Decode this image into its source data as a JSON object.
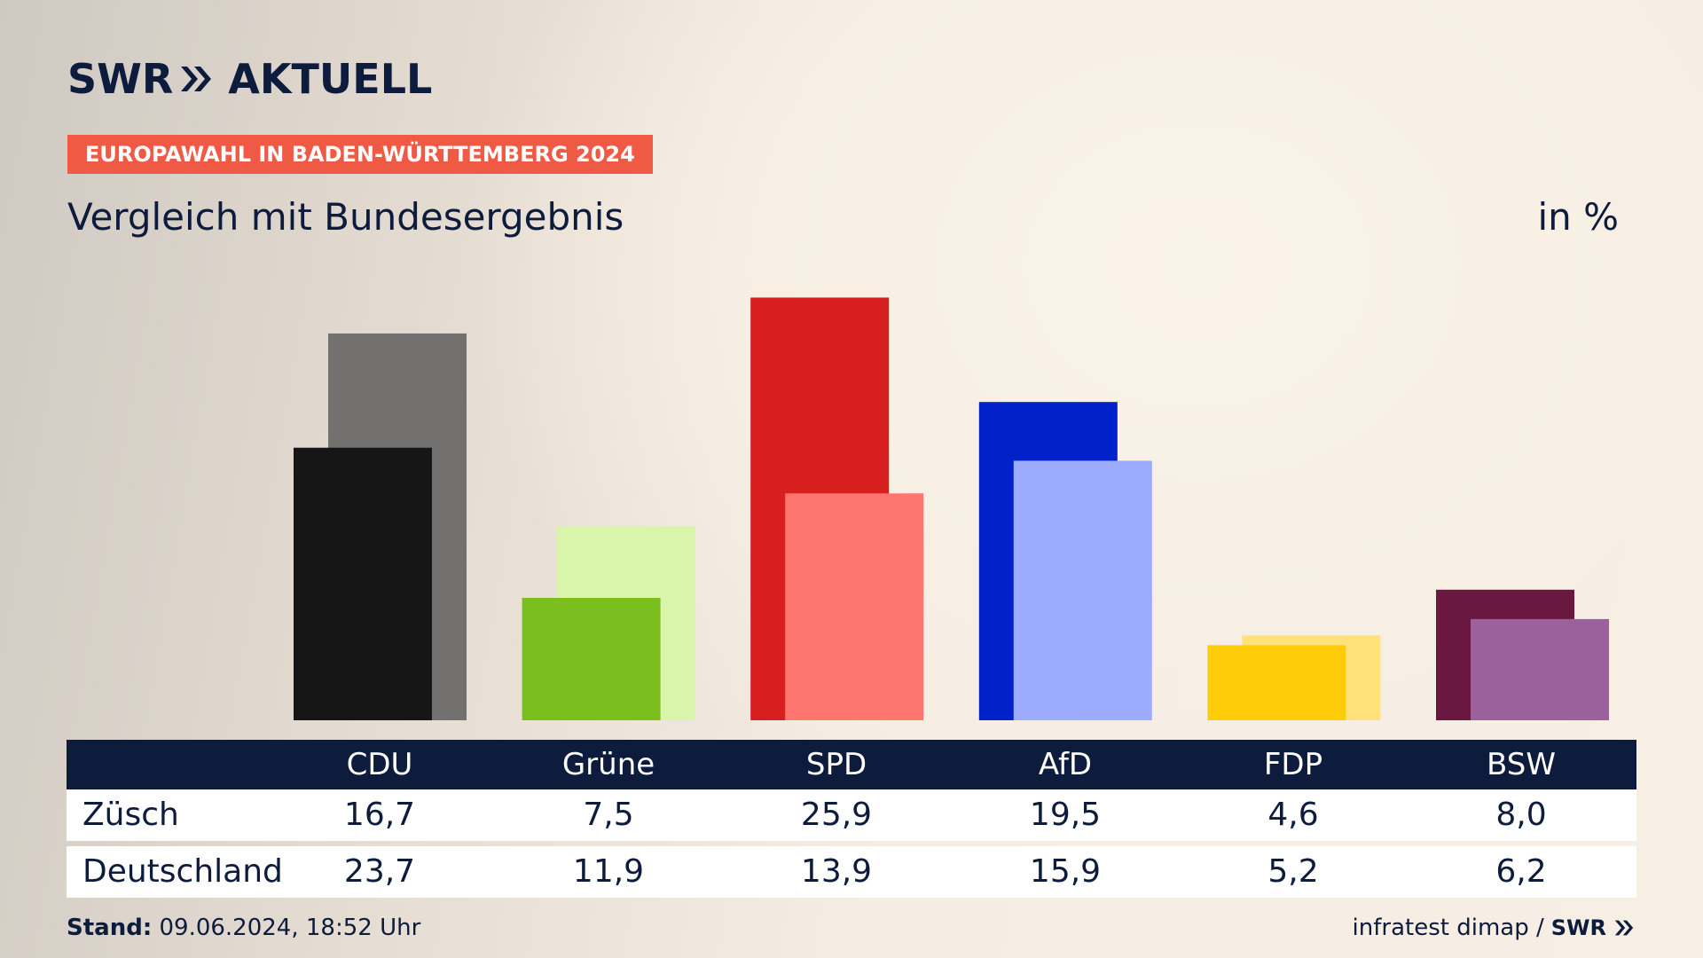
{
  "brand": {
    "logo_part1": "SWR",
    "logo_part2": "AKTUELL"
  },
  "header": {
    "tag": "EUROPAWAHL IN BADEN-WÜRTTEMBERG 2024",
    "subtitle": "Vergleich mit Bundesergebnis",
    "unit": "in %"
  },
  "colors": {
    "navy": "#0d1b3d",
    "tag_bg": "#f05a45"
  },
  "chart_data": {
    "type": "bar",
    "categories": [
      "CDU",
      "Grüne",
      "SPD",
      "AfD",
      "FDP",
      "BSW"
    ],
    "series": [
      {
        "name": "Züsch",
        "values": [
          16.7,
          7.5,
          25.9,
          19.5,
          4.6,
          8.0
        ],
        "colors": [
          "#161616",
          "#7abf1e",
          "#d81f1f",
          "#0022c8",
          "#ffcc0a",
          "#6a1840"
        ]
      },
      {
        "name": "Deutschland",
        "values": [
          23.7,
          11.9,
          13.9,
          15.9,
          5.2,
          6.2
        ],
        "colors": [
          "#737170",
          "#d8f5ab",
          "#ff7570",
          "#9dabff",
          "#ffe27a",
          "#9a619c"
        ]
      }
    ],
    "ylabel": "in %",
    "ylim": [
      0,
      26
    ]
  },
  "table": {
    "headers": [
      "CDU",
      "Grüne",
      "SPD",
      "AfD",
      "FDP",
      "BSW"
    ],
    "rows": [
      {
        "label": "Züsch",
        "values": [
          "16,7",
          "7,5",
          "25,9",
          "19,5",
          "4,6",
          "8,0"
        ]
      },
      {
        "label": "Deutschland",
        "values": [
          "23,7",
          "11,9",
          "13,9",
          "15,9",
          "5,2",
          "6,2"
        ]
      }
    ]
  },
  "footer": {
    "stand_label": "Stand:",
    "stand_value": "09.06.2024, 18:52 Uhr",
    "source": "infratest dimap /",
    "source_logo": "SWR"
  }
}
